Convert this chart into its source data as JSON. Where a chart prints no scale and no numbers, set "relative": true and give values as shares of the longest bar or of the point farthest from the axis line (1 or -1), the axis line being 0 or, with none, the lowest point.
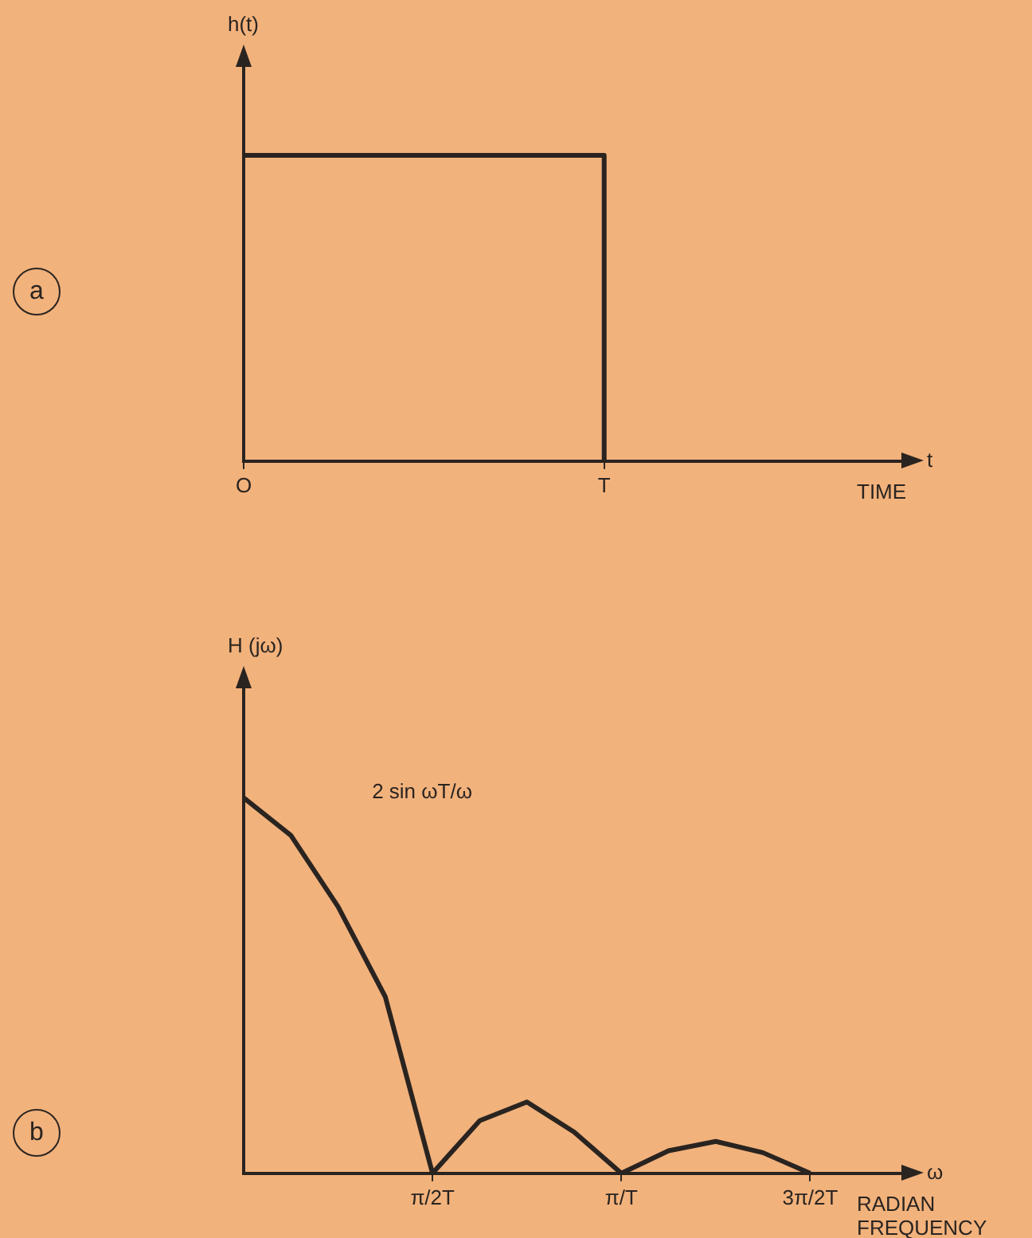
{
  "chart_data": [
    {
      "type": "step",
      "ylabel": "h(t)",
      "xlabel": "TIME",
      "annotations": [
        "t",
        "a"
      ],
      "relative": true,
      "marker": "none",
      "categories": [
        "O",
        null,
        null,
        null,
        null,
        null,
        "T",
        null,
        null,
        null,
        null,
        null
      ],
      "series": [
        {
          "color": "#2a2420",
          "values": [
            1,
            1,
            1,
            1,
            1,
            1,
            0,
            null,
            null,
            null,
            null,
            null
          ]
        }
      ]
    },
    {
      "type": "line",
      "ylabel": "H (jω)",
      "xlabel": "RADIAN FREQUENCY",
      "annotations": [
        "ω",
        "2 sin ωT/ω",
        "b"
      ],
      "relative": true,
      "marker": "none",
      "categories": [
        null,
        null,
        null,
        null,
        "π/2T",
        null,
        null,
        null,
        "π/T",
        null,
        null,
        null,
        "3π/2T",
        null,
        null
      ],
      "series": [
        {
          "color": "#2a2420",
          "values": [
            1,
            0.9,
            0.71,
            0.47,
            0,
            0.14,
            0.19,
            0.11,
            0,
            0.06,
            0.085,
            0.055,
            0,
            null,
            null
          ]
        }
      ]
    }
  ]
}
